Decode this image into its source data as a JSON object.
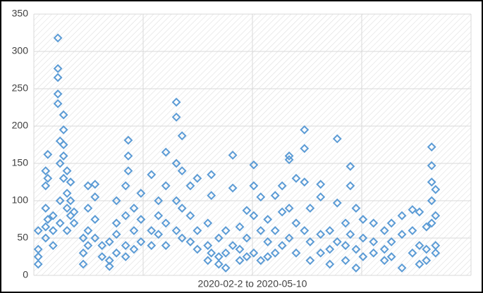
{
  "chart_data": {
    "type": "scatter",
    "xlabel": "2020-02-2 to 2020-05-10",
    "xlim": [
      0,
      100
    ],
    "xticks": [
      0,
      25,
      50,
      75,
      100
    ],
    "ylim": [
      0,
      350
    ],
    "yticks": [
      0,
      50,
      100,
      150,
      200,
      250,
      300,
      350
    ],
    "grid": true,
    "color": "#5b9bd5",
    "marker": "diamond",
    "x": [
      1,
      1,
      1,
      1,
      2.7,
      2.7,
      2.7,
      2.7,
      2.7,
      3.2,
      3.2,
      3.2,
      4.4,
      4.4,
      4.4,
      5.5,
      5.5,
      5.5,
      5.5,
      5.5,
      6,
      6,
      6,
      6,
      6.8,
      6.8,
      6.8,
      6.8,
      6.8,
      7.6,
      7.6,
      7.6,
      7.6,
      8.4,
      8.4,
      8.4,
      9.2,
      9.2,
      11.3,
      11.3,
      11.3,
      12.4,
      12.4,
      12.4,
      12.4,
      14,
      14,
      14,
      14,
      15.6,
      15.6,
      17.3,
      17.3,
      17.3,
      18.9,
      18.9,
      18.9,
      18.9,
      21,
      21,
      21,
      21,
      21.6,
      21.6,
      21.6,
      22.9,
      22.9,
      22.9,
      24.5,
      24.5,
      24.5,
      26.9,
      26.9,
      26.9,
      28.5,
      28.5,
      28.5,
      30.2,
      30.2,
      30.2,
      30.2,
      32.6,
      32.6,
      32.6,
      32.6,
      32.6,
      33.9,
      33.9,
      33.9,
      33.9,
      35.8,
      35.8,
      35.8,
      37.4,
      37.4,
      37.4,
      39.8,
      39.8,
      39.8,
      40.6,
      40.6,
      40.6,
      42.3,
      42.3,
      42.3,
      43.9,
      43.9,
      43.9,
      45.5,
      45.5,
      45.5,
      47.1,
      47.1,
      47.1,
      48.7,
      48.7,
      48.7,
      50.3,
      50.3,
      50.3,
      50.3,
      51.9,
      51.9,
      51.9,
      53.5,
      53.5,
      53.5,
      55.2,
      55.2,
      55.2,
      56.8,
      56.8,
      56.8,
      58.4,
      58.4,
      58.4,
      58.4,
      60,
      60,
      60,
      61.9,
      61.9,
      61.9,
      61.9,
      63.2,
      63.2,
      63.2,
      65.6,
      65.6,
      65.6,
      65.6,
      67.7,
      67.7,
      67.7,
      69.4,
      69.4,
      69.4,
      71.3,
      71.3,
      71.3,
      72.4,
      72.4,
      72.4,
      73.7,
      73.7,
      73.7,
      75.3,
      75.3,
      75.3,
      77.7,
      77.7,
      77.7,
      80.2,
      80.2,
      80.2,
      81.8,
      81.8,
      81.8,
      84.2,
      84.2,
      84.2,
      86.6,
      86.6,
      86.6,
      88.2,
      88.2,
      88.2,
      89.8,
      89.8,
      89.8,
      91,
      91,
      91,
      91,
      91,
      91.9,
      91.9,
      91.9,
      91.9
    ],
    "y": [
      15,
      35,
      60,
      25,
      50,
      65,
      140,
      120,
      90,
      162,
      130,
      75,
      40,
      80,
      60,
      318,
      277,
      265,
      243,
      230,
      150,
      180,
      100,
      70,
      215,
      195,
      175,
      160,
      130,
      140,
      110,
      90,
      60,
      125,
      100,
      80,
      70,
      85,
      15,
      30,
      50,
      120,
      90,
      60,
      40,
      105,
      75,
      122,
      50,
      40,
      25,
      12,
      20,
      45,
      100,
      70,
      55,
      30,
      120,
      80,
      40,
      25,
      181,
      160,
      140,
      90,
      60,
      35,
      110,
      75,
      45,
      135,
      60,
      40,
      100,
      80,
      55,
      165,
      120,
      70,
      40,
      232,
      212,
      150,
      100,
      60,
      187,
      140,
      90,
      50,
      120,
      80,
      45,
      130,
      60,
      35,
      70,
      40,
      20,
      135,
      107,
      30,
      50,
      25,
      15,
      60,
      30,
      10,
      161,
      117,
      40,
      65,
      35,
      20,
      87,
      50,
      25,
      148,
      120,
      80,
      30,
      105,
      60,
      20,
      75,
      45,
      25,
      107,
      60,
      30,
      120,
      85,
      40,
      160,
      155,
      90,
      50,
      130,
      70,
      30,
      195,
      170,
      125,
      60,
      90,
      45,
      20,
      122,
      105,
      55,
      30,
      60,
      35,
      15,
      183,
      97,
      45,
      70,
      40,
      20,
      146,
      120,
      55,
      90,
      35,
      10,
      75,
      50,
      25,
      70,
      45,
      30,
      60,
      35,
      20,
      70,
      45,
      25,
      80,
      55,
      10,
      88,
      60,
      30,
      85,
      40,
      15,
      65,
      35,
      20,
      172,
      147,
      125,
      100,
      70,
      115,
      80,
      40,
      30
    ]
  }
}
